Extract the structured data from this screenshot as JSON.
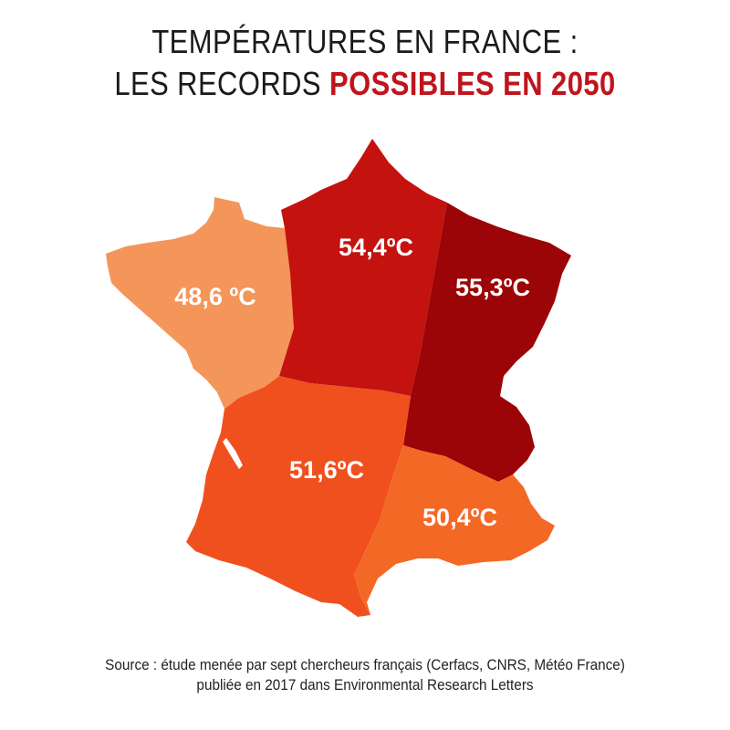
{
  "title": {
    "line1": "TEMPÉRATURES EN FRANCE :",
    "line2_prefix": "LES RECORDS ",
    "line2_accent": "POSSIBLES EN 2050"
  },
  "colors": {
    "accent": "#c0141b",
    "northwest": "#f4955a",
    "north": "#c4120f",
    "northeast": "#9b0507",
    "southwest": "#f0501e",
    "southeast": "#f46826"
  },
  "regions": {
    "northwest": {
      "label": "48,6 ºC",
      "value": 48.6
    },
    "north": {
      "label": "54,4ºC",
      "value": 54.4
    },
    "northeast": {
      "label": "55,3ºC",
      "value": 55.3
    },
    "southwest": {
      "label": "51,6ºC",
      "value": 51.6
    },
    "southeast": {
      "label": "50,4ºC",
      "value": 50.4
    }
  },
  "source": {
    "line1": "Source : étude menée par sept chercheurs français (Cerfacs, CNRS, Météo France)",
    "line2": "publiée en 2017 dans Environmental Research Letters"
  }
}
